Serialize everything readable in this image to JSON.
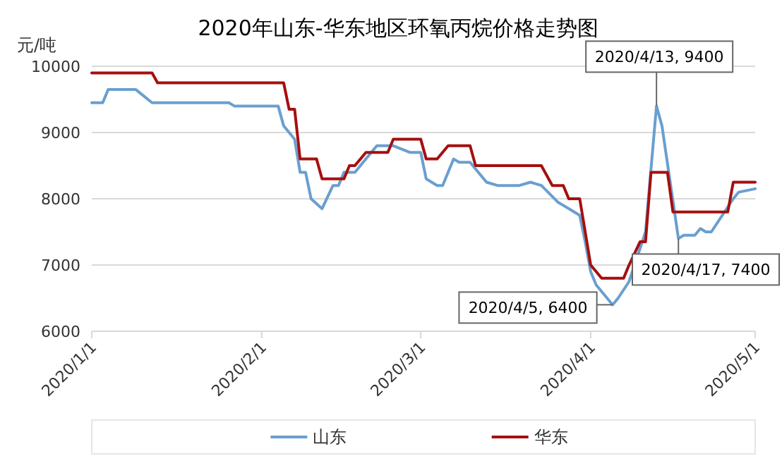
{
  "chart_data": {
    "type": "line",
    "title": "2020年山东-华东地区环氧丙烷价格走势图",
    "ylabel": "元/吨",
    "xlim": [
      "2020-01-01",
      "2020-05-01"
    ],
    "xticks": [
      {
        "value": "2020-01-01",
        "label": "2020/1/1"
      },
      {
        "value": "2020-02-01",
        "label": "2020/2/1"
      },
      {
        "value": "2020-03-01",
        "label": "2020/3/1"
      },
      {
        "value": "2020-04-01",
        "label": "2020/4/1"
      },
      {
        "value": "2020-05-01",
        "label": "2020/5/1"
      }
    ],
    "ylim": [
      6000,
      10000
    ],
    "yticks": [
      6000,
      7000,
      8000,
      9000,
      10000
    ],
    "grid": "y",
    "legend": "bottom",
    "series": [
      {
        "name": "山东",
        "color": "#6a9fcf",
        "x": [
          "2020-01-01",
          "2020-01-03",
          "2020-01-04",
          "2020-01-09",
          "2020-01-12",
          "2020-01-26",
          "2020-01-27",
          "2020-02-04",
          "2020-02-05",
          "2020-02-07",
          "2020-02-08",
          "2020-02-09",
          "2020-02-10",
          "2020-02-12",
          "2020-02-14",
          "2020-02-15",
          "2020-02-16",
          "2020-02-18",
          "2020-02-22",
          "2020-02-25",
          "2020-02-28",
          "2020-03-01",
          "2020-03-02",
          "2020-03-04",
          "2020-03-05",
          "2020-03-07",
          "2020-03-08",
          "2020-03-10",
          "2020-03-13",
          "2020-03-15",
          "2020-03-19",
          "2020-03-21",
          "2020-03-23",
          "2020-03-26",
          "2020-03-27",
          "2020-03-29",
          "2020-03-30",
          "2020-03-31",
          "2020-04-01",
          "2020-04-02",
          "2020-04-05",
          "2020-04-06",
          "2020-04-08",
          "2020-04-10",
          "2020-04-11",
          "2020-04-13",
          "2020-04-14",
          "2020-04-17",
          "2020-04-18",
          "2020-04-20",
          "2020-04-21",
          "2020-04-22",
          "2020-04-23",
          "2020-04-25",
          "2020-04-27",
          "2020-04-28",
          "2020-05-01"
        ],
        "values": [
          9450,
          9450,
          9650,
          9650,
          9450,
          9450,
          9400,
          9400,
          9100,
          8900,
          8400,
          8400,
          8000,
          7850,
          8200,
          8200,
          8400,
          8400,
          8800,
          8800,
          8700,
          8700,
          8300,
          8200,
          8200,
          8600,
          8550,
          8550,
          8250,
          8200,
          8200,
          8250,
          8200,
          7950,
          7900,
          7800,
          7750,
          7350,
          6900,
          6700,
          6400,
          6500,
          6750,
          7250,
          7500,
          9400,
          9100,
          7400,
          7450,
          7450,
          7550,
          7500,
          7500,
          7750,
          8000,
          8100,
          8150
        ]
      },
      {
        "name": "华东",
        "color": "#a50f0f",
        "x": [
          "2020-01-01",
          "2020-01-12",
          "2020-01-13",
          "2020-02-05",
          "2020-02-06",
          "2020-02-07",
          "2020-02-08",
          "2020-02-11",
          "2020-02-12",
          "2020-02-16",
          "2020-02-17",
          "2020-02-18",
          "2020-02-20",
          "2020-02-24",
          "2020-02-25",
          "2020-03-01",
          "2020-03-02",
          "2020-03-04",
          "2020-03-06",
          "2020-03-10",
          "2020-03-11",
          "2020-03-23",
          "2020-03-25",
          "2020-03-27",
          "2020-03-28",
          "2020-03-30",
          "2020-04-01",
          "2020-04-03",
          "2020-04-07",
          "2020-04-08",
          "2020-04-10",
          "2020-04-11",
          "2020-04-12",
          "2020-04-15",
          "2020-04-16",
          "2020-04-26",
          "2020-04-27",
          "2020-05-01"
        ],
        "values": [
          9900,
          9900,
          9750,
          9750,
          9350,
          9350,
          8600,
          8600,
          8300,
          8300,
          8500,
          8500,
          8700,
          8700,
          8900,
          8900,
          8600,
          8600,
          8800,
          8800,
          8500,
          8500,
          8200,
          8200,
          8000,
          8000,
          7000,
          6800,
          6800,
          7000,
          7350,
          7350,
          8400,
          8400,
          7800,
          7800,
          8250,
          8250
        ]
      }
    ],
    "annotations": [
      {
        "text": "2020/4/13, 9400",
        "x": "2020-04-13",
        "y": 9400
      },
      {
        "text": "2020/4/17, 7400",
        "x": "2020-04-17",
        "y": 7400
      },
      {
        "text": "2020/4/5, 6400",
        "x": "2020-04-05",
        "y": 6400
      }
    ]
  }
}
